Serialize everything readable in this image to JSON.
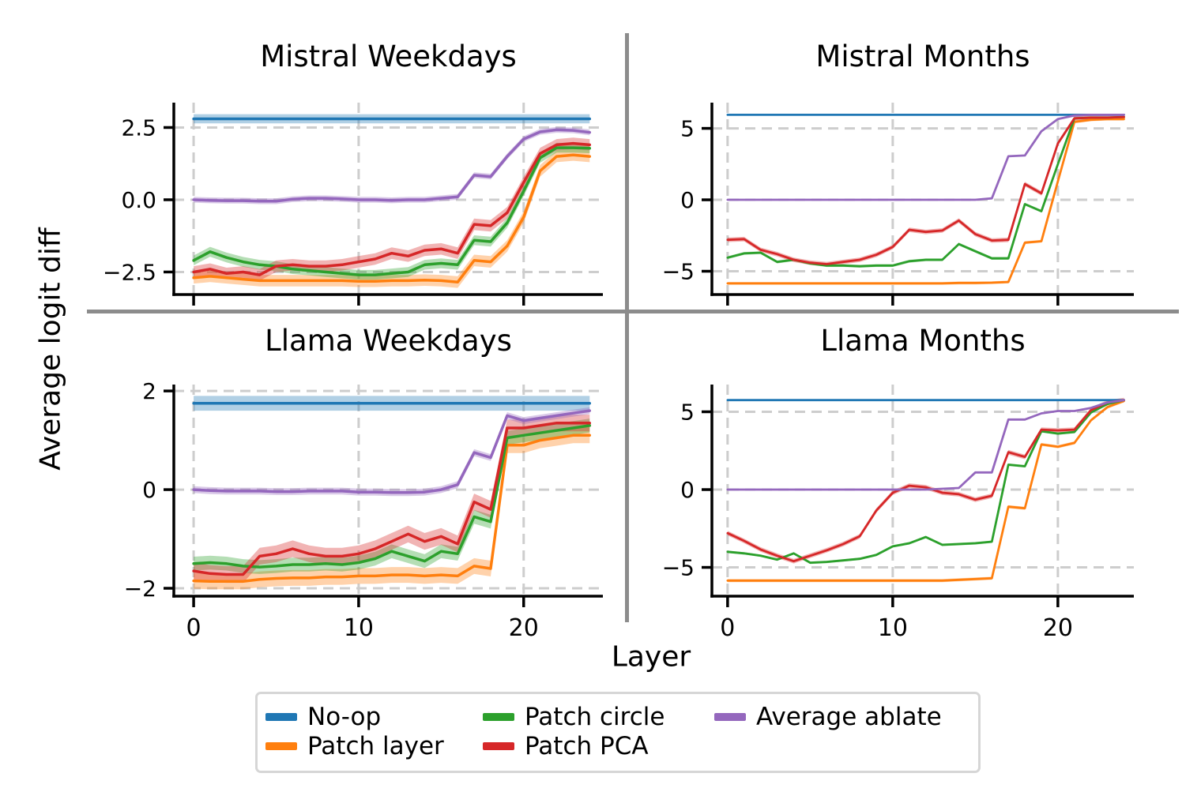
{
  "figure": {
    "ylabel": "Average logit diff",
    "xlabel": "Layer"
  },
  "legend": {
    "items": [
      {
        "label": "No-op",
        "color": "#1f77b4"
      },
      {
        "label": "Patch layer",
        "color": "#ff7f0e"
      },
      {
        "label": "Patch circle",
        "color": "#2ca02c"
      },
      {
        "label": "Patch PCA",
        "color": "#d62728"
      },
      {
        "label": "Average ablate",
        "color": "#9467bd"
      }
    ]
  },
  "chart_data": [
    {
      "type": "line",
      "title": "Mistral Weekdays",
      "x": [
        0,
        1,
        2,
        3,
        4,
        5,
        6,
        7,
        8,
        9,
        10,
        11,
        12,
        13,
        14,
        15,
        16,
        17,
        18,
        19,
        20,
        21,
        22,
        23,
        24
      ],
      "xticks": [
        0,
        10,
        20
      ],
      "show_xtick_labels": false,
      "yticks": [
        {
          "v": 2.5,
          "label": "2.5"
        },
        {
          "v": 0,
          "label": "0.0"
        },
        {
          "v": -2.5,
          "label": "−2.5"
        }
      ],
      "xlim": [
        -1.2,
        24.8
      ],
      "ylim": [
        -3.28,
        3.36
      ],
      "grid": true,
      "series": [
        {
          "name": "No-op",
          "color": "#1f77b4",
          "lw": 3.5,
          "band": 0.16,
          "values": [
            2.8,
            2.8,
            2.8,
            2.8,
            2.8,
            2.8,
            2.8,
            2.8,
            2.8,
            2.8,
            2.8,
            2.8,
            2.8,
            2.8,
            2.8,
            2.8,
            2.8,
            2.8,
            2.8,
            2.8,
            2.8,
            2.8,
            2.8,
            2.8,
            2.8
          ]
        },
        {
          "name": "Patch layer",
          "color": "#ff7f0e",
          "lw": 3.5,
          "band": 0.2,
          "values": [
            -2.7,
            -2.65,
            -2.7,
            -2.75,
            -2.8,
            -2.8,
            -2.8,
            -2.8,
            -2.8,
            -2.8,
            -2.82,
            -2.82,
            -2.8,
            -2.8,
            -2.78,
            -2.8,
            -2.85,
            -2.1,
            -2.15,
            -1.6,
            -0.6,
            1.0,
            1.5,
            1.55,
            1.5
          ]
        },
        {
          "name": "Patch circle",
          "color": "#2ca02c",
          "lw": 3.5,
          "band": 0.17,
          "values": [
            -2.1,
            -1.8,
            -2.0,
            -2.15,
            -2.25,
            -2.3,
            -2.4,
            -2.45,
            -2.5,
            -2.55,
            -2.6,
            -2.6,
            -2.55,
            -2.5,
            -2.25,
            -2.2,
            -2.25,
            -1.4,
            -1.45,
            -0.8,
            0.3,
            1.45,
            1.8,
            1.8,
            1.78
          ]
        },
        {
          "name": "Patch PCA",
          "color": "#d62728",
          "lw": 3.5,
          "band": 0.2,
          "values": [
            -2.5,
            -2.4,
            -2.55,
            -2.5,
            -2.6,
            -2.3,
            -2.25,
            -2.3,
            -2.3,
            -2.25,
            -2.15,
            -2.05,
            -1.85,
            -1.95,
            -1.75,
            -1.7,
            -1.85,
            -0.85,
            -0.9,
            -0.45,
            0.6,
            1.6,
            1.9,
            1.95,
            1.9
          ]
        },
        {
          "name": "Average ablate",
          "color": "#9467bd",
          "lw": 3.5,
          "band": 0.1,
          "values": [
            0,
            -0.02,
            -0.03,
            -0.03,
            -0.05,
            -0.05,
            0.02,
            0.05,
            0.05,
            0.03,
            0,
            0,
            -0.02,
            0,
            0,
            0.05,
            0.1,
            0.85,
            0.8,
            1.5,
            2.1,
            2.35,
            2.42,
            2.4,
            2.33
          ]
        }
      ]
    },
    {
      "type": "line",
      "title": "Mistral Months",
      "x": [
        0,
        1,
        2,
        3,
        4,
        5,
        6,
        7,
        8,
        9,
        10,
        11,
        12,
        13,
        14,
        15,
        16,
        17,
        18,
        19,
        20,
        21,
        22,
        23,
        24
      ],
      "xticks": [
        0,
        10,
        20
      ],
      "show_xtick_labels": false,
      "yticks": [
        {
          "v": 5,
          "label": "5"
        },
        {
          "v": 0,
          "label": "0"
        },
        {
          "v": -5,
          "label": "−5"
        }
      ],
      "xlim": [
        -0.95,
        24.6
      ],
      "ylim": [
        -6.63,
        6.8
      ],
      "grid": true,
      "series": [
        {
          "name": "No-op",
          "color": "#1f77b4",
          "lw": 2.8,
          "band": 0.06,
          "values": [
            5.95,
            5.95,
            5.95,
            5.95,
            5.95,
            5.95,
            5.95,
            5.95,
            5.95,
            5.95,
            5.95,
            5.95,
            5.95,
            5.95,
            5.95,
            5.95,
            5.95,
            5.95,
            5.95,
            5.95,
            5.95,
            5.95,
            5.95,
            5.95,
            5.95
          ]
        },
        {
          "name": "Patch layer",
          "color": "#ff7f0e",
          "lw": 2.8,
          "band": 0.1,
          "values": [
            -5.85,
            -5.85,
            -5.85,
            -5.85,
            -5.85,
            -5.85,
            -5.85,
            -5.85,
            -5.85,
            -5.85,
            -5.85,
            -5.85,
            -5.85,
            -5.85,
            -5.82,
            -5.82,
            -5.8,
            -5.75,
            -3.0,
            -2.9,
            1.3,
            5.45,
            5.6,
            5.65,
            5.65
          ]
        },
        {
          "name": "Patch circle",
          "color": "#2ca02c",
          "lw": 2.8,
          "band": 0.1,
          "values": [
            -4.05,
            -3.75,
            -3.7,
            -4.35,
            -4.2,
            -4.45,
            -4.6,
            -4.6,
            -4.65,
            -4.6,
            -4.6,
            -4.3,
            -4.2,
            -4.2,
            -3.1,
            -3.6,
            -4.1,
            -4.1,
            -0.3,
            -0.8,
            2.5,
            5.7,
            5.75,
            5.75,
            5.8
          ]
        },
        {
          "name": "Patch PCA",
          "color": "#d62728",
          "lw": 2.8,
          "band": 0.16,
          "values": [
            -2.8,
            -2.75,
            -3.5,
            -3.8,
            -4.2,
            -4.4,
            -4.5,
            -4.35,
            -4.2,
            -3.85,
            -3.3,
            -2.1,
            -2.25,
            -2.15,
            -1.45,
            -2.4,
            -2.85,
            -2.8,
            1.1,
            0.45,
            3.95,
            5.7,
            5.75,
            5.75,
            5.8
          ]
        },
        {
          "name": "Average ablate",
          "color": "#9467bd",
          "lw": 2.8,
          "band": 0.05,
          "values": [
            0,
            0,
            0,
            0,
            0,
            0,
            0,
            0,
            0,
            0,
            0,
            0,
            0,
            0,
            0,
            0,
            0.1,
            3.05,
            3.1,
            4.8,
            5.65,
            5.9,
            5.95,
            5.95,
            5.95
          ]
        }
      ]
    },
    {
      "type": "line",
      "title": "Llama Weekdays",
      "x": [
        0,
        1,
        2,
        3,
        4,
        5,
        6,
        7,
        8,
        9,
        10,
        11,
        12,
        13,
        14,
        15,
        16,
        17,
        18,
        19,
        20,
        21,
        22,
        23,
        24
      ],
      "xticks": [
        0,
        10,
        20
      ],
      "show_xtick_labels": true,
      "yticks": [
        {
          "v": 2,
          "label": "2"
        },
        {
          "v": 0,
          "label": "0"
        },
        {
          "v": -2,
          "label": "−2"
        }
      ],
      "xlim": [
        -1.2,
        24.8
      ],
      "ylim": [
        -2.16,
        2.13
      ],
      "grid": true,
      "series": [
        {
          "name": "No-op",
          "color": "#1f77b4",
          "lw": 3.5,
          "band": 0.15,
          "values": [
            1.75,
            1.75,
            1.75,
            1.75,
            1.75,
            1.75,
            1.75,
            1.75,
            1.75,
            1.75,
            1.75,
            1.75,
            1.75,
            1.75,
            1.75,
            1.75,
            1.75,
            1.75,
            1.75,
            1.75,
            1.75,
            1.75,
            1.75,
            1.75,
            1.75
          ]
        },
        {
          "name": "Patch layer",
          "color": "#ff7f0e",
          "lw": 3.5,
          "band": 0.16,
          "values": [
            -1.85,
            -1.86,
            -1.86,
            -1.86,
            -1.82,
            -1.8,
            -1.79,
            -1.79,
            -1.77,
            -1.77,
            -1.75,
            -1.75,
            -1.73,
            -1.73,
            -1.75,
            -1.73,
            -1.75,
            -1.55,
            -1.6,
            0.9,
            0.9,
            1.0,
            1.05,
            1.1,
            1.1
          ]
        },
        {
          "name": "Patch circle",
          "color": "#2ca02c",
          "lw": 3.5,
          "band": 0.14,
          "values": [
            -1.5,
            -1.48,
            -1.5,
            -1.55,
            -1.57,
            -1.55,
            -1.52,
            -1.52,
            -1.5,
            -1.52,
            -1.48,
            -1.4,
            -1.25,
            -1.35,
            -1.45,
            -1.25,
            -1.3,
            -0.55,
            -0.65,
            1.05,
            1.1,
            1.15,
            1.2,
            1.25,
            1.3
          ]
        },
        {
          "name": "Patch PCA",
          "color": "#d62728",
          "lw": 3.5,
          "band": 0.17,
          "values": [
            -1.65,
            -1.7,
            -1.72,
            -1.72,
            -1.35,
            -1.3,
            -1.2,
            -1.3,
            -1.35,
            -1.35,
            -1.3,
            -1.2,
            -1.05,
            -0.9,
            -1.05,
            -0.95,
            -1.1,
            -0.25,
            -0.4,
            1.25,
            1.25,
            1.3,
            1.35,
            1.35,
            1.35
          ]
        },
        {
          "name": "Average ablate",
          "color": "#9467bd",
          "lw": 3.5,
          "band": 0.07,
          "values": [
            0,
            -0.02,
            -0.03,
            -0.03,
            -0.03,
            -0.04,
            -0.04,
            -0.03,
            -0.03,
            -0.03,
            -0.05,
            -0.05,
            -0.06,
            -0.06,
            -0.05,
            0,
            0.1,
            0.75,
            0.65,
            1.5,
            1.4,
            1.45,
            1.5,
            1.55,
            1.6
          ]
        }
      ]
    },
    {
      "type": "line",
      "title": "Llama Months",
      "x": [
        0,
        1,
        2,
        3,
        4,
        5,
        6,
        7,
        8,
        9,
        10,
        11,
        12,
        13,
        14,
        15,
        16,
        17,
        18,
        19,
        20,
        21,
        22,
        23,
        24
      ],
      "xticks": [
        0,
        10,
        20
      ],
      "show_xtick_labels": true,
      "yticks": [
        {
          "v": 5,
          "label": "5"
        },
        {
          "v": 0,
          "label": "0"
        },
        {
          "v": -5,
          "label": "−5"
        }
      ],
      "xlim": [
        -0.95,
        24.6
      ],
      "ylim": [
        -6.85,
        6.75
      ],
      "grid": true,
      "series": [
        {
          "name": "No-op",
          "color": "#1f77b4",
          "lw": 2.8,
          "band": 0.05,
          "values": [
            5.75,
            5.75,
            5.75,
            5.75,
            5.75,
            5.75,
            5.75,
            5.75,
            5.75,
            5.75,
            5.75,
            5.75,
            5.75,
            5.75,
            5.75,
            5.75,
            5.75,
            5.75,
            5.75,
            5.75,
            5.75,
            5.75,
            5.75,
            5.75,
            5.75
          ]
        },
        {
          "name": "Patch layer",
          "color": "#ff7f0e",
          "lw": 2.8,
          "band": 0.1,
          "values": [
            -5.85,
            -5.85,
            -5.85,
            -5.85,
            -5.85,
            -5.85,
            -5.85,
            -5.85,
            -5.85,
            -5.85,
            -5.85,
            -5.85,
            -5.85,
            -5.85,
            -5.8,
            -5.75,
            -5.7,
            -1.1,
            -1.2,
            2.9,
            2.75,
            3.0,
            4.45,
            5.3,
            5.7
          ]
        },
        {
          "name": "Patch circle",
          "color": "#2ca02c",
          "lw": 2.8,
          "band": 0.08,
          "values": [
            -4.0,
            -4.1,
            -4.25,
            -4.5,
            -4.1,
            -4.7,
            -4.65,
            -4.55,
            -4.45,
            -4.2,
            -3.65,
            -3.45,
            -3.05,
            -3.55,
            -3.5,
            -3.45,
            -3.35,
            1.6,
            1.5,
            3.75,
            3.6,
            3.7,
            4.95,
            5.5,
            5.75
          ]
        },
        {
          "name": "Patch PCA",
          "color": "#d62728",
          "lw": 2.8,
          "band": 0.15,
          "values": [
            -2.8,
            -3.3,
            -3.85,
            -4.25,
            -4.6,
            -4.25,
            -3.9,
            -3.5,
            -3.0,
            -1.35,
            -0.2,
            0.25,
            0.15,
            -0.2,
            -0.3,
            -0.65,
            -0.4,
            2.4,
            2.1,
            3.85,
            3.8,
            3.85,
            5.1,
            5.6,
            5.75
          ]
        },
        {
          "name": "Average ablate",
          "color": "#9467bd",
          "lw": 2.8,
          "band": 0.04,
          "values": [
            0,
            0,
            0,
            0,
            0,
            0,
            0,
            0,
            0,
            0,
            0,
            0,
            0,
            0.05,
            0.1,
            1.1,
            1.1,
            4.5,
            4.5,
            4.9,
            5.05,
            5.05,
            5.25,
            5.6,
            5.75
          ]
        }
      ]
    }
  ]
}
